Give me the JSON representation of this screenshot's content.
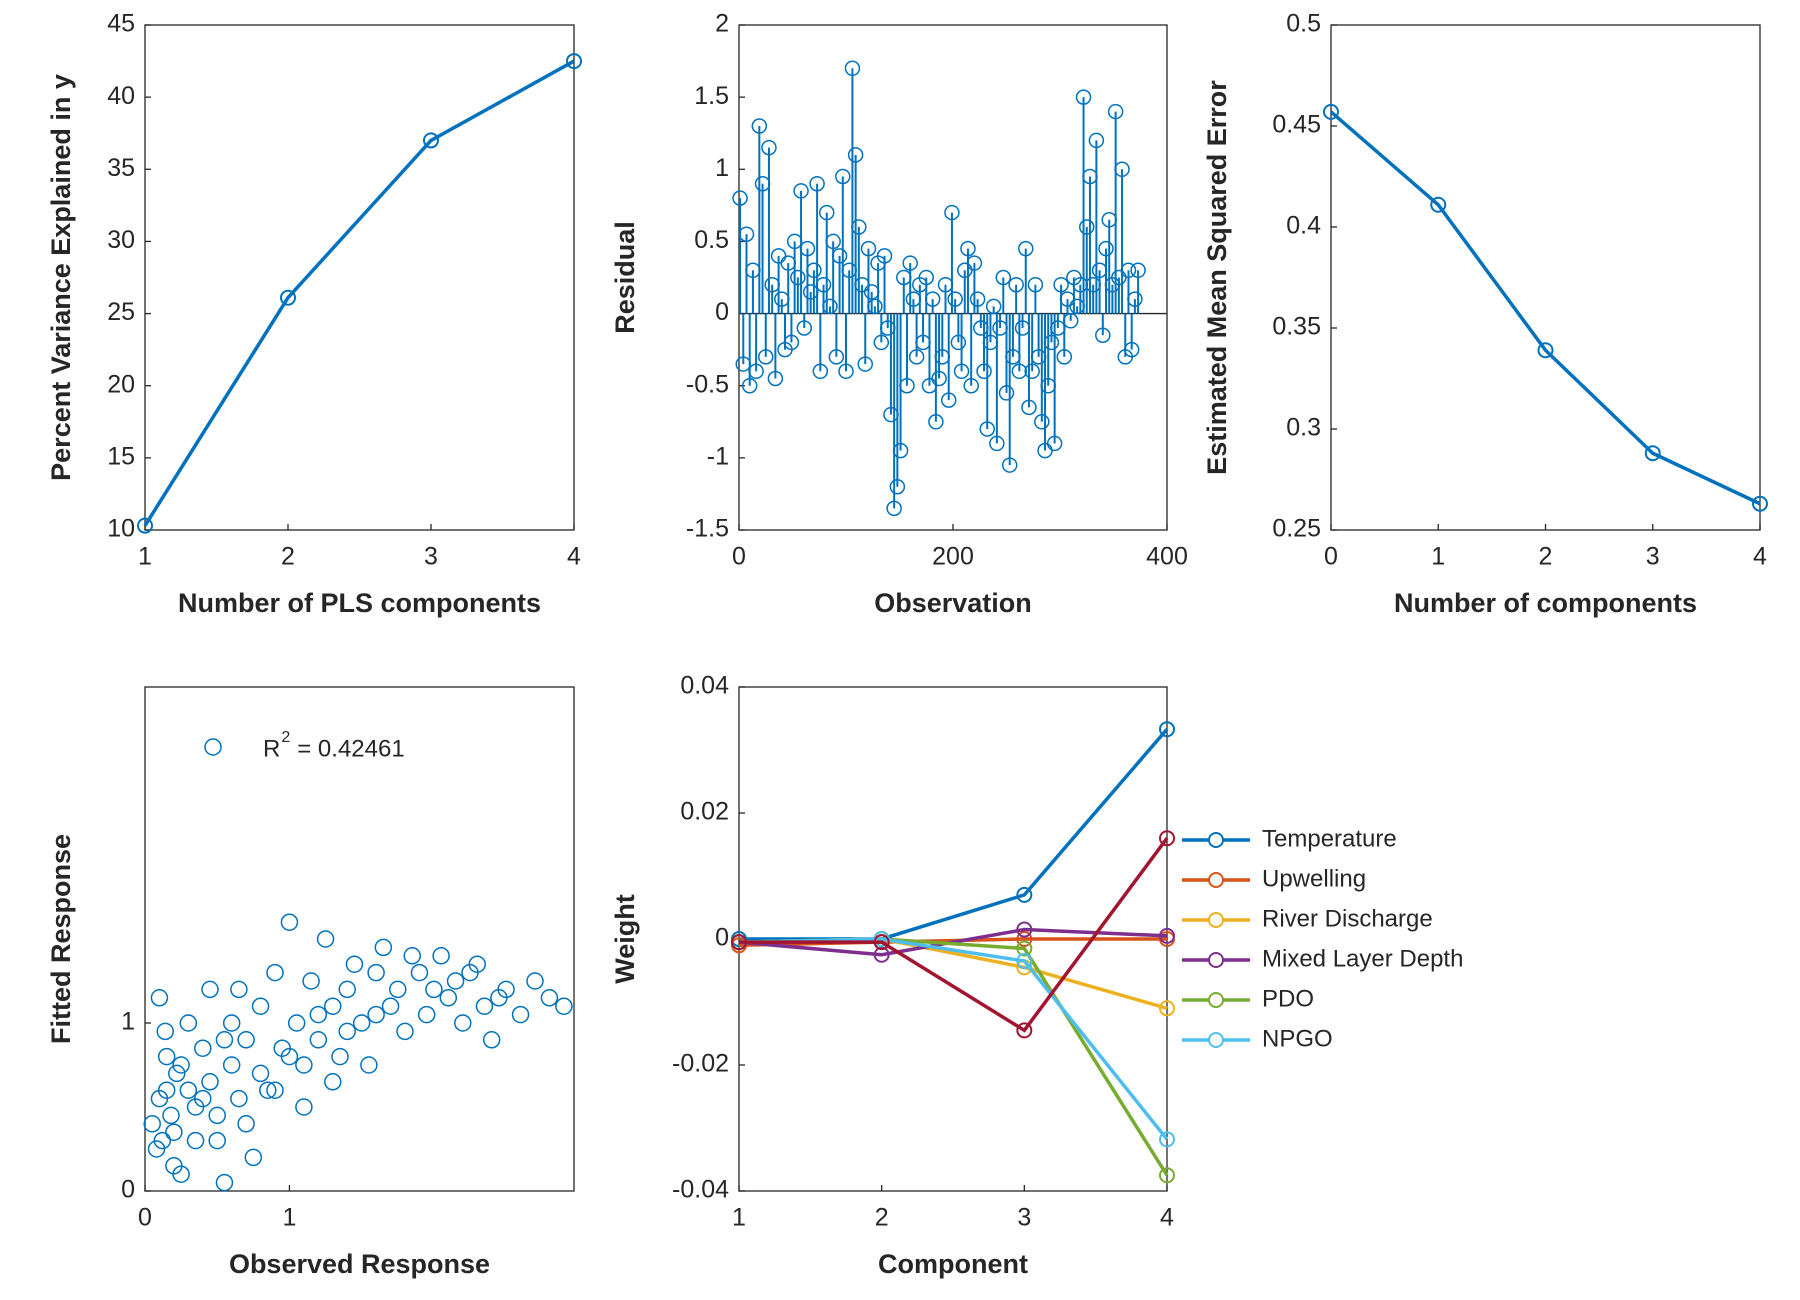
{
  "chart_data": [
    {
      "type": "line",
      "x": [
        1,
        2,
        3,
        4
      ],
      "values": [
        10.3,
        26.1,
        37.0,
        42.5
      ],
      "color": "#0072bd",
      "xlim": [
        1,
        4
      ],
      "xticks": [
        1,
        2,
        3,
        4
      ],
      "ylim": [
        10,
        45
      ],
      "yticks": [
        10,
        15,
        20,
        25,
        30,
        35,
        40,
        45
      ],
      "xlabel": "Number of PLS components",
      "ylabel": "Percent Variance Explained in y"
    },
    {
      "type": "stem",
      "color": "#0072bd",
      "x": [
        1,
        4,
        7,
        10,
        13,
        16,
        19,
        22,
        25,
        28,
        31,
        34,
        37,
        40,
        43,
        46,
        49,
        52,
        55,
        58,
        61,
        64,
        67,
        70,
        73,
        76,
        79,
        82,
        85,
        88,
        91,
        94,
        97,
        100,
        103,
        106,
        109,
        112,
        115,
        118,
        121,
        124,
        127,
        130,
        133,
        136,
        139,
        142,
        145,
        148,
        151,
        154,
        157,
        160,
        163,
        166,
        169,
        172,
        175,
        178,
        181,
        184,
        187,
        190,
        193,
        196,
        199,
        202,
        205,
        208,
        211,
        214,
        217,
        220,
        223,
        226,
        229,
        232,
        235,
        238,
        241,
        244,
        247,
        250,
        253,
        256,
        259,
        262,
        265,
        268,
        271,
        274,
        277,
        280,
        283,
        286,
        289,
        292,
        295,
        298,
        301,
        304,
        307,
        310,
        313,
        316,
        319,
        322,
        325,
        328,
        331,
        334,
        337,
        340,
        343,
        346,
        349,
        352,
        355,
        358,
        361,
        364,
        367,
        370,
        373
      ],
      "values": [
        0.8,
        -0.35,
        0.55,
        -0.5,
        0.3,
        -0.4,
        1.3,
        0.9,
        -0.3,
        1.15,
        0.2,
        -0.45,
        0.4,
        0.1,
        -0.25,
        0.35,
        -0.2,
        0.5,
        0.25,
        0.85,
        -0.1,
        0.45,
        0.15,
        0.3,
        0.9,
        -0.4,
        0.2,
        0.7,
        0.05,
        0.5,
        -0.3,
        0.4,
        0.95,
        -0.4,
        0.3,
        1.7,
        1.1,
        0.6,
        0.2,
        -0.35,
        0.45,
        0.15,
        0.05,
        0.35,
        -0.2,
        0.4,
        -0.1,
        -0.7,
        -1.35,
        -1.2,
        -0.95,
        0.25,
        -0.5,
        0.35,
        0.1,
        -0.3,
        0.2,
        -0.2,
        0.25,
        -0.5,
        0.1,
        -0.75,
        -0.45,
        -0.3,
        0.2,
        -0.6,
        0.7,
        0.1,
        -0.2,
        -0.4,
        0.3,
        0.45,
        -0.5,
        0.35,
        0.1,
        -0.1,
        -0.4,
        -0.8,
        -0.2,
        0.05,
        -0.9,
        -0.1,
        0.25,
        -0.55,
        -1.05,
        -0.3,
        0.2,
        -0.4,
        -0.1,
        0.45,
        -0.65,
        -0.4,
        0.2,
        -0.3,
        -0.75,
        -0.95,
        -0.5,
        -0.2,
        -0.9,
        -0.1,
        0.2,
        -0.3,
        0.1,
        -0.05,
        0.25,
        0.05,
        0.2,
        1.5,
        0.6,
        0.95,
        0.2,
        1.2,
        0.3,
        -0.15,
        0.45,
        0.65,
        0.2,
        1.4,
        0.25,
        1.0,
        -0.3,
        0.3,
        -0.25,
        0.1,
        0.3
      ],
      "xlim": [
        0,
        400
      ],
      "xticks": [
        0,
        200,
        400
      ],
      "ylim": [
        -1.5,
        2
      ],
      "yticks": [
        -1.5,
        -1,
        -0.5,
        0,
        0.5,
        1,
        1.5,
        2
      ],
      "xlabel": "Observation",
      "ylabel": "Residual"
    },
    {
      "type": "line",
      "x": [
        0,
        1,
        2,
        3,
        4
      ],
      "values": [
        0.457,
        0.411,
        0.339,
        0.288,
        0.263
      ],
      "color": "#0072bd",
      "xlim": [
        0,
        4
      ],
      "xticks": [
        0,
        1,
        2,
        3,
        4
      ],
      "ylim": [
        0.25,
        0.5
      ],
      "yticks": [
        0.25,
        0.3,
        0.35,
        0.4,
        0.45,
        0.5
      ],
      "xlabel": "Number of components",
      "ylabel": "Estimated Mean Squared Error"
    },
    {
      "type": "scatter",
      "color": "#0072bd",
      "x": [
        0.05,
        0.08,
        0.1,
        0.12,
        0.15,
        0.18,
        0.2,
        0.1,
        0.14,
        0.22,
        0.25,
        0.3,
        0.35,
        0.4,
        0.45,
        0.5,
        0.55,
        0.6,
        0.65,
        0.7,
        0.75,
        0.8,
        0.85,
        0.9,
        0.95,
        1.0,
        1.05,
        1.1,
        1.15,
        1.2,
        1.25,
        1.3,
        1.35,
        1.4,
        1.45,
        1.5,
        1.55,
        1.6,
        1.65,
        1.7,
        1.75,
        1.8,
        1.9,
        1.95,
        2.0,
        2.05,
        2.1,
        2.2,
        2.3,
        2.35,
        2.4,
        2.5,
        2.6,
        2.7,
        2.8,
        2.9,
        0.3,
        0.45,
        0.6,
        0.2,
        0.35,
        0.5,
        0.7,
        0.9,
        1.1,
        1.3,
        0.15,
        0.25,
        0.4,
        0.55,
        0.65,
        0.8,
        1.0,
        1.2,
        1.4,
        1.6,
        1.85,
        2.15,
        2.25,
        2.45
      ],
      "values": [
        0.4,
        0.25,
        0.55,
        0.3,
        0.8,
        0.45,
        0.35,
        1.15,
        0.95,
        0.7,
        0.1,
        0.6,
        0.5,
        0.85,
        0.65,
        0.3,
        0.05,
        0.75,
        0.55,
        0.9,
        0.2,
        1.1,
        0.6,
        1.3,
        0.85,
        1.6,
        1.0,
        0.75,
        1.25,
        0.9,
        1.5,
        1.1,
        0.8,
        1.2,
        1.35,
        1.0,
        0.75,
        1.3,
        1.45,
        1.1,
        1.2,
        0.95,
        1.3,
        1.05,
        1.2,
        1.4,
        1.15,
        1.0,
        1.35,
        1.1,
        0.9,
        1.2,
        1.05,
        1.25,
        1.15,
        1.1,
        1.0,
        1.2,
        1.0,
        0.15,
        0.3,
        0.45,
        0.4,
        0.6,
        0.5,
        0.65,
        0.6,
        0.75,
        0.55,
        0.9,
        1.2,
        0.7,
        0.8,
        1.05,
        0.95,
        1.05,
        1.4,
        1.25,
        1.3,
        1.15
      ],
      "xlim": [
        0,
        2.97
      ],
      "xticks": [
        0,
        1
      ],
      "ylim": [
        0,
        3
      ],
      "yticks": [
        0,
        1
      ],
      "legend": {
        "base": "R",
        "sup": "2",
        "rest": "= 0.42461"
      },
      "xlabel": "Observed Response",
      "ylabel": "Fitted Response"
    },
    {
      "type": "line",
      "x": [
        1,
        2,
        3,
        4
      ],
      "series": [
        {
          "name": "Temperature",
          "color": "#0072bd",
          "values": [
            0,
            0,
            0.007,
            0.0333
          ]
        },
        {
          "name": "Upwelling",
          "color": "#d95319",
          "values": [
            -0.001,
            -0.0005,
            0,
            0
          ]
        },
        {
          "name": "River Discharge",
          "color": "#edb120",
          "values": [
            -0.0005,
            0,
            -0.0045,
            -0.011
          ]
        },
        {
          "name": "Mixed Layer Depth",
          "color": "#7e2f8e",
          "values": [
            -0.0005,
            -0.0025,
            0.0015,
            0.0005
          ]
        },
        {
          "name": "PDO",
          "color": "#77ac30",
          "values": [
            -0.0005,
            0,
            -0.0015,
            -0.0375
          ]
        },
        {
          "name": "NPGO",
          "color": "#4dbeee",
          "values": [
            -0.0005,
            0,
            -0.0035,
            -0.0318
          ]
        },
        {
          "color": "#a2142f",
          "values": [
            -0.0005,
            -0.0005,
            -0.0145,
            0.016
          ]
        }
      ],
      "xlim": [
        1,
        4
      ],
      "xticks": [
        1,
        2,
        3,
        4
      ],
      "ylim": [
        -0.04,
        0.04
      ],
      "yticks": [
        -0.04,
        -0.02,
        0,
        0.02,
        0.04
      ],
      "legend_position": "outside-right",
      "xlabel": "Component",
      "ylabel": "Weight"
    }
  ]
}
